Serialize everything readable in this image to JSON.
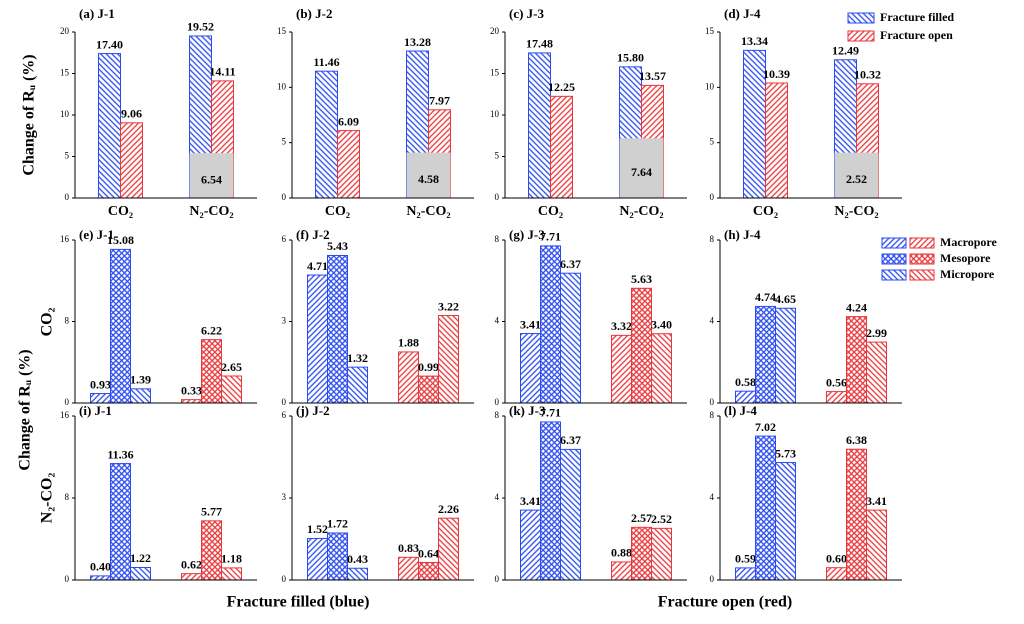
{
  "ylabels": [
    "Change of Rᵤ (%)",
    "Change of Rᵤ (%)"
  ],
  "row_labels": [
    "CO₂",
    "N₂-CO₂"
  ],
  "xlabels": [
    "Fracture filled (blue)",
    "Fracture open (red)"
  ],
  "legend_fracture": [
    {
      "name": "Fracture filled",
      "color": "#2a4bf0",
      "pattern": "back"
    },
    {
      "name": "Fracture open",
      "color": "#e8363a",
      "pattern": "fwd"
    }
  ],
  "legend_pore": [
    {
      "name": "Macropore",
      "pattern": "fwd"
    },
    {
      "name": "Mesopore",
      "pattern": "cross"
    },
    {
      "name": "Micropore",
      "pattern": "back"
    }
  ],
  "chart_data": [
    {
      "type": "bar",
      "title": "(a) J-1",
      "categories": [
        "CO₂",
        "N₂-CO₂"
      ],
      "ylim": [
        0,
        20
      ],
      "yticks": [
        0,
        5,
        10,
        15,
        20
      ],
      "series": [
        {
          "pattern": "back",
          "color": "#2a4bf0",
          "values": [
            17.4,
            19.52
          ],
          "value_labels": [
            "17.40",
            "19.52"
          ]
        },
        {
          "pattern": "fwd",
          "color": "#e8363a",
          "values": [
            9.06,
            14.11
          ]
        }
      ],
      "shade_top": 5.4,
      "shade_label": 6.54
    },
    {
      "type": "bar",
      "title": "(b) J-2",
      "categories": [
        "CO₂",
        "N₂-CO₂"
      ],
      "ylim": [
        0,
        15
      ],
      "yticks": [
        0,
        5,
        10,
        15
      ],
      "series": [
        {
          "pattern": "back",
          "color": "#2a4bf0",
          "values": [
            11.46,
            13.28
          ]
        },
        {
          "pattern": "fwd",
          "color": "#e8363a",
          "values": [
            6.09,
            7.97
          ]
        }
      ],
      "shade_top": 4.1,
      "shade_label": 4.58
    },
    {
      "type": "bar",
      "title": "(c) J-3",
      "categories": [
        "CO₂",
        "N₂-CO₂"
      ],
      "ylim": [
        0,
        20
      ],
      "yticks": [
        0,
        5,
        10,
        15,
        20
      ],
      "series": [
        {
          "pattern": "back",
          "color": "#2a4bf0",
          "values": [
            17.48,
            15.8
          ],
          "value_labels": [
            "17.48",
            "15.80"
          ]
        },
        {
          "pattern": "fwd",
          "color": "#e8363a",
          "values": [
            12.25,
            13.57
          ]
        }
      ],
      "shade_top": 7.2,
      "shade_label": 7.64
    },
    {
      "type": "bar",
      "title": "(d) J-4",
      "categories": [
        "CO₂",
        "N₂-CO₂"
      ],
      "ylim": [
        0,
        15
      ],
      "yticks": [
        0,
        5,
        10,
        15
      ],
      "series": [
        {
          "pattern": "back",
          "color": "#2a4bf0",
          "values": [
            13.34,
            12.49
          ]
        },
        {
          "pattern": "fwd",
          "color": "#e8363a",
          "values": [
            10.39,
            10.32
          ]
        }
      ],
      "shade_top": 4.1,
      "shade_label": 2.52
    },
    {
      "type": "bar",
      "title": "(e) J-1",
      "categories": [
        null,
        null
      ],
      "ylim": [
        0,
        16
      ],
      "yticks": [
        0,
        8,
        16
      ],
      "series": [
        {
          "pattern": "fwd",
          "colors": [
            "#2a4bf0",
            "#e8363a"
          ],
          "values": [
            0.93,
            0.33
          ]
        },
        {
          "pattern": "cross",
          "colors": [
            "#2a4bf0",
            "#e8363a"
          ],
          "values": [
            15.08,
            6.22
          ]
        },
        {
          "pattern": "back",
          "colors": [
            "#2a4bf0",
            "#e8363a"
          ],
          "values": [
            1.39,
            2.65
          ]
        }
      ]
    },
    {
      "type": "bar",
      "title": "(f) J-2",
      "categories": [
        null,
        null
      ],
      "ylim": [
        0,
        6
      ],
      "yticks": [
        0,
        3,
        6
      ],
      "series": [
        {
          "pattern": "fwd",
          "colors": [
            "#2a4bf0",
            "#e8363a"
          ],
          "values": [
            4.71,
            1.88
          ]
        },
        {
          "pattern": "cross",
          "colors": [
            "#2a4bf0",
            "#e8363a"
          ],
          "values": [
            5.43,
            0.99
          ]
        },
        {
          "pattern": "back",
          "colors": [
            "#2a4bf0",
            "#e8363a"
          ],
          "values": [
            1.32,
            3.22
          ]
        }
      ]
    },
    {
      "type": "bar",
      "title": "(g) J-3",
      "categories": [
        null,
        null
      ],
      "ylim": [
        0,
        8
      ],
      "yticks": [
        0,
        4,
        8
      ],
      "series": [
        {
          "pattern": "fwd",
          "colors": [
            "#2a4bf0",
            "#e8363a"
          ],
          "values": [
            3.41,
            3.32
          ]
        },
        {
          "pattern": "cross",
          "colors": [
            "#2a4bf0",
            "#e8363a"
          ],
          "values": [
            7.71,
            5.63
          ]
        },
        {
          "pattern": "back",
          "colors": [
            "#2a4bf0",
            "#e8363a"
          ],
          "values": [
            6.37,
            3.4
          ],
          "value_labels": [
            "6.37",
            "3.40"
          ]
        }
      ]
    },
    {
      "type": "bar",
      "title": "(h) J-4",
      "categories": [
        null,
        null
      ],
      "ylim": [
        0,
        8
      ],
      "yticks": [
        0,
        4,
        8
      ],
      "series": [
        {
          "pattern": "fwd",
          "colors": [
            "#2a4bf0",
            "#e8363a"
          ],
          "values": [
            0.58,
            0.56
          ]
        },
        {
          "pattern": "cross",
          "colors": [
            "#2a4bf0",
            "#e8363a"
          ],
          "values": [
            4.74,
            4.24
          ]
        },
        {
          "pattern": "back",
          "colors": [
            "#2a4bf0",
            "#e8363a"
          ],
          "values": [
            4.65,
            2.99
          ]
        }
      ]
    },
    {
      "type": "bar",
      "title": "(i) J-1",
      "categories": [
        null,
        null
      ],
      "ylim": [
        0,
        16
      ],
      "yticks": [
        0,
        8,
        16
      ],
      "series": [
        {
          "pattern": "fwd",
          "colors": [
            "#2a4bf0",
            "#e8363a"
          ],
          "values": [
            0.4,
            0.62
          ],
          "value_labels": [
            "0.40",
            "0.62"
          ]
        },
        {
          "pattern": "cross",
          "colors": [
            "#2a4bf0",
            "#e8363a"
          ],
          "values": [
            11.36,
            5.77
          ]
        },
        {
          "pattern": "back",
          "colors": [
            "#2a4bf0",
            "#e8363a"
          ],
          "values": [
            1.22,
            1.18
          ]
        }
      ]
    },
    {
      "type": "bar",
      "title": "(j) J-2",
      "categories": [
        null,
        null
      ],
      "ylim": [
        0,
        6
      ],
      "yticks": [
        0,
        3,
        6
      ],
      "series": [
        {
          "pattern": "fwd",
          "colors": [
            "#2a4bf0",
            "#e8363a"
          ],
          "values": [
            1.52,
            0.83
          ]
        },
        {
          "pattern": "cross",
          "colors": [
            "#2a4bf0",
            "#e8363a"
          ],
          "values": [
            1.72,
            0.64
          ]
        },
        {
          "pattern": "back",
          "colors": [
            "#2a4bf0",
            "#e8363a"
          ],
          "values": [
            0.43,
            2.26
          ]
        }
      ]
    },
    {
      "type": "bar",
      "title": "(k) J-3",
      "categories": [
        null,
        null
      ],
      "ylim": [
        0,
        8
      ],
      "yticks": [
        0,
        4,
        8
      ],
      "series": [
        {
          "pattern": "fwd",
          "colors": [
            "#2a4bf0",
            "#e8363a"
          ],
          "values": [
            3.41,
            0.88
          ]
        },
        {
          "pattern": "cross",
          "colors": [
            "#2a4bf0",
            "#e8363a"
          ],
          "values": [
            7.71,
            2.57
          ]
        },
        {
          "pattern": "back",
          "colors": [
            "#2a4bf0",
            "#e8363a"
          ],
          "values": [
            6.37,
            2.52
          ]
        }
      ]
    },
    {
      "type": "bar",
      "title": "(l) J-4",
      "categories": [
        null,
        null
      ],
      "ylim": [
        0,
        8
      ],
      "yticks": [
        0,
        4,
        8
      ],
      "series": [
        {
          "pattern": "fwd",
          "colors": [
            "#2a4bf0",
            "#e8363a"
          ],
          "values": [
            0.59,
            0.6
          ],
          "value_labels": [
            "0.59",
            "0.60"
          ]
        },
        {
          "pattern": "cross",
          "colors": [
            "#2a4bf0",
            "#e8363a"
          ],
          "values": [
            7.02,
            6.38
          ]
        },
        {
          "pattern": "back",
          "colors": [
            "#2a4bf0",
            "#e8363a"
          ],
          "values": [
            5.73,
            3.41
          ]
        }
      ]
    }
  ]
}
